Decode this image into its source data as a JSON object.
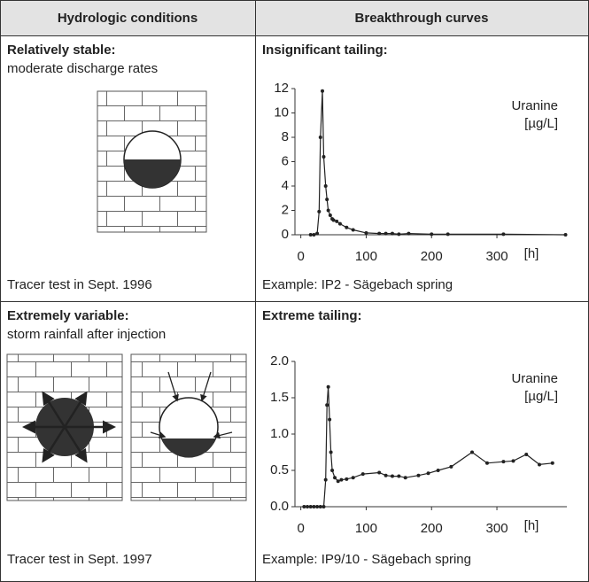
{
  "table": {
    "header": [
      "Hydrologic conditions",
      "Breakthrough curves"
    ],
    "rows": [
      {
        "condition": "Relatively stable:",
        "description": "moderate discharge rates",
        "test": "Tracer test in Sept. 1996"
      },
      {
        "condition": "Extremely variable:",
        "description": "storm rainfall after injection",
        "test": "Tracer test in Sept. 1997"
      }
    ]
  },
  "chart_data": [
    {
      "type": "line",
      "title": "Insignificant tailing:",
      "caption": "Example: IP2 - Sägebach spring",
      "annotation": [
        "Uranine",
        "[µg/L]"
      ],
      "xlabel": "[h]",
      "xlim": [
        -9,
        407
      ],
      "xticks": [
        0,
        100,
        200,
        300
      ],
      "ylim": [
        0,
        12
      ],
      "yticks": [
        0,
        2,
        4,
        6,
        8,
        10,
        12
      ],
      "series": [
        {
          "color": "#222222",
          "x": [
            15,
            20,
            25,
            28,
            30,
            33,
            35,
            38,
            40,
            42,
            45,
            48,
            50,
            55,
            60,
            70,
            80,
            100,
            120,
            130,
            140,
            150,
            165,
            200,
            225,
            310,
            405
          ],
          "values": [
            0,
            0,
            0.1,
            1.9,
            8,
            11.8,
            6.4,
            4,
            2.9,
            2.0,
            1.6,
            1.3,
            1.2,
            1.1,
            0.9,
            0.6,
            0.4,
            0.15,
            0.1,
            0.1,
            0.1,
            0.05,
            0.1,
            0.05,
            0.05,
            0.05,
            0
          ]
        }
      ]
    },
    {
      "type": "line",
      "title": "Extreme tailing:",
      "caption": "Example: IP9/10 - Sägebach spring",
      "annotation": [
        "Uranine",
        "[µg/L]"
      ],
      "xlabel": "[h]",
      "xlim": [
        -9,
        407
      ],
      "xticks": [
        0,
        100,
        200,
        300
      ],
      "ylim": [
        0,
        2
      ],
      "yticks": [
        {
          "value": 0,
          "label": "0.0"
        },
        {
          "value": 0.5,
          "label": "0.5"
        },
        {
          "value": 1,
          "label": "1.0"
        },
        {
          "value": 1.5,
          "label": "1.5"
        },
        {
          "value": 2,
          "label": "2.0"
        }
      ],
      "series": [
        {
          "color": "#222222",
          "x": [
            5,
            10,
            15,
            20,
            25,
            30,
            35,
            38,
            40,
            42,
            44,
            46,
            48,
            52,
            57,
            62,
            70,
            80,
            95,
            120,
            130,
            140,
            150,
            160,
            180,
            195,
            210,
            230,
            262,
            285,
            310,
            325,
            345,
            365,
            385
          ],
          "values": [
            0,
            0,
            0,
            0,
            0,
            0,
            0,
            0.37,
            1.4,
            1.65,
            1.2,
            0.75,
            0.5,
            0.4,
            0.35,
            0.37,
            0.38,
            0.4,
            0.45,
            0.47,
            0.43,
            0.42,
            0.42,
            0.4,
            0.43,
            0.46,
            0.5,
            0.55,
            0.75,
            0.6,
            0.62,
            0.63,
            0.72,
            0.58,
            0.6
          ]
        }
      ]
    }
  ]
}
